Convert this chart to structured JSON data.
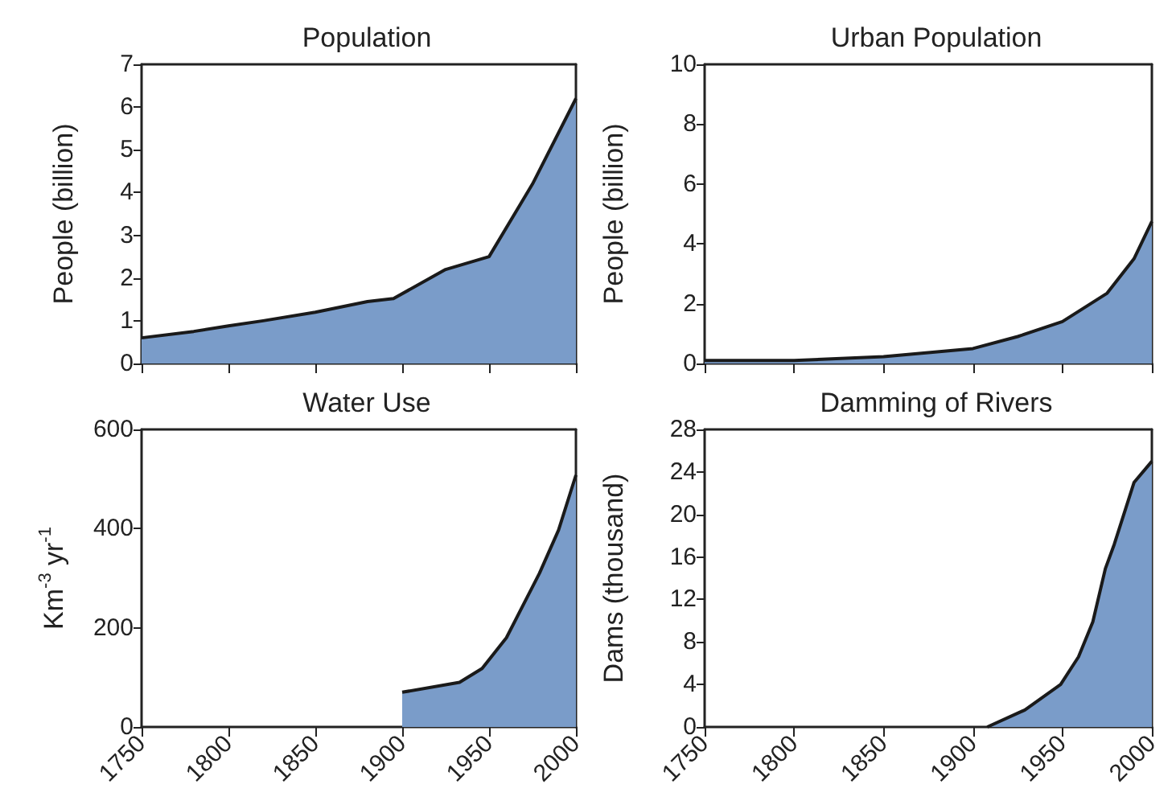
{
  "chart_data": [
    {
      "type": "area",
      "title": "Population",
      "ylabel": "People (billion)",
      "x": [
        1750,
        1780,
        1800,
        1820,
        1850,
        1880,
        1895,
        1925,
        1950,
        1975,
        2000
      ],
      "series": [
        {
          "color": "#7a9cc9",
          "values": [
            0.6,
            0.75,
            0.88,
            1.0,
            1.2,
            1.45,
            1.52,
            2.2,
            2.5,
            4.2,
            6.2
          ]
        }
      ],
      "xlim": [
        1750,
        2000
      ],
      "xticks": [
        {
          "value": 1750,
          "label": null
        },
        {
          "value": 1800,
          "label": null
        },
        {
          "value": 1850,
          "label": null
        },
        {
          "value": 1900,
          "label": null
        },
        {
          "value": 1950,
          "label": null
        },
        {
          "value": 2000,
          "label": null
        }
      ],
      "ylim": [
        0,
        7
      ],
      "yticks": [
        0,
        1,
        2,
        3,
        4,
        5,
        6,
        7
      ],
      "tick_labels": "y"
    },
    {
      "type": "area",
      "title": "Urban Population",
      "ylabel": "People (billion)",
      "x": [
        1750,
        1800,
        1850,
        1900,
        1925,
        1950,
        1975,
        1990,
        2000
      ],
      "series": [
        {
          "color": "#7a9cc9",
          "values": [
            0.1,
            0.1,
            0.23,
            0.5,
            0.9,
            1.4,
            2.35,
            3.5,
            4.75
          ]
        }
      ],
      "xlim": [
        1750,
        2000
      ],
      "xticks": [
        {
          "value": 1750,
          "label": null
        },
        {
          "value": 1800,
          "label": null
        },
        {
          "value": 1850,
          "label": null
        },
        {
          "value": 1900,
          "label": null
        },
        {
          "value": 1950,
          "label": null
        },
        {
          "value": 2000,
          "label": null
        }
      ],
      "ylim": [
        0,
        10
      ],
      "yticks": [
        0,
        2,
        4,
        6,
        8,
        10
      ],
      "tick_labels": "y"
    },
    {
      "type": "area",
      "title": "Water Use",
      "ylabel": "Km$^{-3}$ yr$^{-1}$",
      "x": [
        1900,
        1933,
        1946,
        1960,
        1979,
        1990,
        2000
      ],
      "series": [
        {
          "color": "#7a9cc9",
          "values": [
            70,
            90,
            118,
            180,
            310,
            397,
            508
          ]
        }
      ],
      "xlim": [
        1750,
        2000
      ],
      "xticks": [
        1750,
        1800,
        1850,
        1900,
        1950,
        2000
      ],
      "ylim": [
        0,
        600
      ],
      "yticks": [
        0,
        200,
        400,
        600
      ]
    },
    {
      "type": "area",
      "title": "Damming of Rivers",
      "ylabel": "Dams (thousand)",
      "x": [
        1908,
        1929,
        1949,
        1959,
        1967,
        1974,
        1979,
        1990,
        2000
      ],
      "series": [
        {
          "color": "#7a9cc9",
          "values": [
            0,
            1.6,
            4,
            6.6,
            9.9,
            14.9,
            17.2,
            23,
            25
          ]
        }
      ],
      "xlim": [
        1750,
        2000
      ],
      "xticks": [
        1750,
        1800,
        1850,
        1900,
        1950,
        2000
      ],
      "ylim": [
        0,
        28
      ],
      "yticks": [
        0,
        4,
        8,
        12,
        16,
        20,
        24,
        28
      ]
    }
  ]
}
